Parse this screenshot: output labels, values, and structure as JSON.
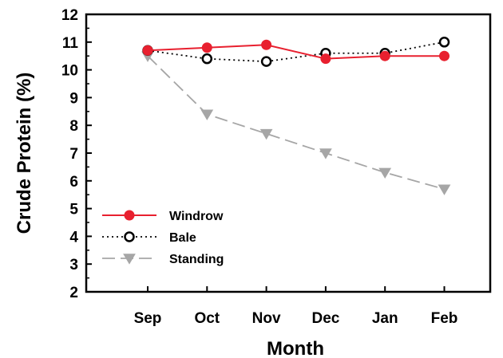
{
  "chart_data": {
    "type": "line",
    "title": "",
    "xlabel": "Month",
    "ylabel": "Crude Protein (%)",
    "categories": [
      "Sep",
      "Oct",
      "Nov",
      "Dec",
      "Jan",
      "Feb"
    ],
    "ylim": [
      2,
      12
    ],
    "yticks": [
      2,
      3,
      4,
      5,
      6,
      7,
      8,
      9,
      10,
      11,
      12
    ],
    "grid": false,
    "legend_position": "bottom-left",
    "series": [
      {
        "name": "Windrow",
        "values": [
          10.7,
          10.8,
          10.9,
          10.4,
          10.5,
          10.5
        ],
        "color": "#e8202f",
        "line": "solid",
        "marker": "filled-circle"
      },
      {
        "name": "Bale",
        "values": [
          10.7,
          10.4,
          10.3,
          10.6,
          10.6,
          11.0
        ],
        "color": "#000000",
        "line": "dotted",
        "marker": "open-circle"
      },
      {
        "name": "Standing",
        "values": [
          10.5,
          8.4,
          7.7,
          7.0,
          6.3,
          5.7
        ],
        "color": "#a6a6a6",
        "line": "dashed",
        "marker": "down-triangle"
      }
    ]
  }
}
